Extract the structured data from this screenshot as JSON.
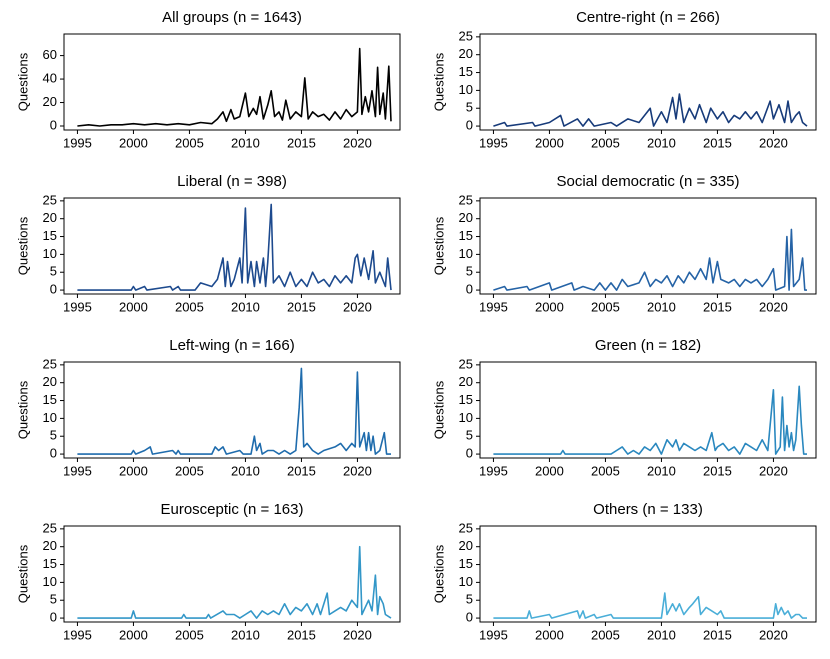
{
  "chart_data": [
    {
      "type": "line",
      "title": "All groups (n = 1643)",
      "y_label": "Questions",
      "color": "#000000",
      "xlim": [
        1993.8,
        2023.8
      ],
      "ylim": [
        -3.4,
        78.4
      ],
      "xticks": [
        1995,
        2000,
        2005,
        2010,
        2015,
        2020
      ],
      "yticks": [
        0,
        20,
        40,
        60
      ],
      "x": [
        1995,
        1996,
        1997,
        1998,
        1999,
        2000,
        2001,
        2002,
        2003,
        2004,
        2005,
        2006,
        2007,
        2007.5,
        2008,
        2008.3,
        2008.7,
        2009,
        2009.5,
        2010,
        2010.3,
        2010.7,
        2011,
        2011.3,
        2011.6,
        2012,
        2012.3,
        2012.6,
        2013,
        2013.3,
        2013.6,
        2014,
        2014.5,
        2015,
        2015.3,
        2015.6,
        2016,
        2016.5,
        2017,
        2017.5,
        2018,
        2018.5,
        2019,
        2019.5,
        2020,
        2020.2,
        2020.4,
        2020.7,
        2021,
        2021.3,
        2021.6,
        2021.8,
        2022,
        2022.3,
        2022.5,
        2022.8,
        2023
      ],
      "values": [
        0,
        1,
        0,
        1,
        1,
        2,
        1,
        2,
        1,
        2,
        1,
        3,
        2,
        6,
        12,
        4,
        14,
        6,
        8,
        28,
        8,
        15,
        10,
        25,
        6,
        18,
        30,
        8,
        12,
        5,
        22,
        6,
        12,
        8,
        41,
        6,
        12,
        8,
        10,
        5,
        12,
        6,
        14,
        8,
        12,
        66,
        10,
        25,
        12,
        30,
        8,
        50,
        10,
        28,
        6,
        51,
        4
      ]
    },
    {
      "type": "line",
      "title": "Centre-right (n = 266)",
      "y_label": "Questions",
      "color": "#173b7a",
      "xlim": [
        1993.8,
        2023.8
      ],
      "ylim": [
        -1.1,
        25.8
      ],
      "xticks": [
        1995,
        2000,
        2005,
        2010,
        2015,
        2020
      ],
      "yticks": [
        0,
        5,
        10,
        15,
        20,
        25
      ],
      "x": [
        1995,
        1996,
        1996.2,
        1998.5,
        1998.7,
        2000,
        2001,
        2001.3,
        2002.5,
        2003,
        2003.5,
        2004,
        2005.5,
        2006,
        2007,
        2008,
        2009,
        2009.3,
        2010,
        2010.5,
        2011,
        2011.3,
        2011.6,
        2012,
        2012.5,
        2013,
        2013.4,
        2014,
        2014.4,
        2015,
        2015.5,
        2016,
        2016.5,
        2017,
        2017.5,
        2018,
        2018.5,
        2019,
        2019.7,
        2020,
        2020.5,
        2021,
        2021.3,
        2021.6,
        2022,
        2022.3,
        2022.6,
        2023
      ],
      "values": [
        0,
        1,
        0,
        1,
        0,
        1,
        3,
        0,
        2,
        0,
        2,
        0,
        1,
        0,
        2,
        1,
        5,
        0,
        4,
        1,
        8,
        2,
        9,
        1,
        5,
        2,
        6,
        1,
        5,
        2,
        4,
        1,
        3,
        2,
        4,
        2,
        4,
        1,
        7,
        2,
        6,
        1,
        7,
        1,
        3,
        4,
        1,
        0
      ]
    },
    {
      "type": "line",
      "title": "Liberal (n = 398)",
      "y_label": "Questions",
      "color": "#1d4a8e",
      "xlim": [
        1993.8,
        2023.8
      ],
      "ylim": [
        -1.1,
        25.8
      ],
      "xticks": [
        1995,
        2000,
        2005,
        2010,
        2015,
        2020
      ],
      "yticks": [
        0,
        5,
        10,
        15,
        20,
        25
      ],
      "x": [
        1995,
        1999.8,
        2000,
        2000.2,
        2001,
        2001.2,
        2003.3,
        2003.5,
        2004,
        2004.2,
        2005.5,
        2006,
        2007,
        2007.5,
        2008,
        2008.2,
        2008.4,
        2008.7,
        2009,
        2009.5,
        2009.7,
        2010,
        2010.2,
        2010.5,
        2010.8,
        2011,
        2011.3,
        2011.6,
        2011.8,
        2012,
        2012.3,
        2012.5,
        2013,
        2013.5,
        2014,
        2014.5,
        2015,
        2015.5,
        2016,
        2016.5,
        2017,
        2017.5,
        2018,
        2018.5,
        2019,
        2019.5,
        2019.8,
        2020,
        2020.3,
        2020.6,
        2021,
        2021.4,
        2021.6,
        2022,
        2022.5,
        2022.7,
        2023
      ],
      "values": [
        0,
        0,
        1,
        0,
        1,
        0,
        1,
        0,
        1,
        0,
        0,
        2,
        1,
        3,
        9,
        1,
        8,
        1,
        3,
        9,
        2,
        23,
        2,
        8,
        1,
        8,
        2,
        9,
        1,
        8,
        24,
        2,
        4,
        1,
        5,
        1,
        3,
        1,
        5,
        2,
        3,
        1,
        4,
        2,
        4,
        2,
        9,
        10,
        4,
        9,
        3,
        11,
        2,
        5,
        1,
        9,
        0
      ]
    },
    {
      "type": "line",
      "title": "Social democratic (n = 335)",
      "y_label": "Questions",
      "color": "#2563a6",
      "xlim": [
        1993.8,
        2023.8
      ],
      "ylim": [
        -1.1,
        25.8
      ],
      "xticks": [
        1995,
        2000,
        2005,
        2010,
        2015,
        2020
      ],
      "yticks": [
        0,
        5,
        10,
        15,
        20,
        25
      ],
      "x": [
        1995,
        1996,
        1996.2,
        1998,
        1998.2,
        2000,
        2000.2,
        2002,
        2002.2,
        2003,
        2004,
        2004.5,
        2005,
        2005.5,
        2006,
        2006.5,
        2007,
        2008,
        2008.5,
        2009,
        2009.5,
        2010,
        2010.5,
        2011,
        2011.5,
        2012,
        2012.5,
        2013,
        2013.5,
        2014,
        2014.3,
        2014.6,
        2015,
        2015.3,
        2016,
        2016.5,
        2017,
        2017.5,
        2018,
        2018.5,
        2019,
        2019.5,
        2020,
        2020.2,
        2021,
        2021.2,
        2021.4,
        2021.6,
        2021.8,
        2022.3,
        2022.6,
        2022.8,
        2023
      ],
      "values": [
        0,
        1,
        0,
        1,
        0,
        2,
        0,
        2,
        0,
        1,
        0,
        2,
        0,
        2,
        0,
        3,
        1,
        2,
        5,
        1,
        3,
        2,
        4,
        1,
        4,
        2,
        5,
        3,
        6,
        3,
        9,
        2,
        8,
        3,
        2,
        3,
        1,
        3,
        2,
        3,
        1,
        3,
        6,
        0,
        1,
        15,
        0,
        17,
        1,
        3,
        9,
        0,
        0
      ]
    },
    {
      "type": "line",
      "title": "Left-wing (n = 166)",
      "y_label": "Questions",
      "color": "#1f6cad",
      "xlim": [
        1993.8,
        2023.8
      ],
      "ylim": [
        -1.1,
        25.8
      ],
      "xticks": [
        1995,
        2000,
        2005,
        2010,
        2015,
        2020
      ],
      "yticks": [
        0,
        5,
        10,
        15,
        20,
        25
      ],
      "x": [
        1995,
        1999.8,
        2000,
        2000.2,
        2001,
        2001.5,
        2001.7,
        2003.5,
        2003.8,
        2004,
        2004.2,
        2007,
        2007.3,
        2007.6,
        2008,
        2008.3,
        2009.5,
        2009.8,
        2010.5,
        2010.8,
        2011,
        2011.3,
        2011.5,
        2012,
        2012.5,
        2013,
        2013.5,
        2014,
        2014.5,
        2014.8,
        2015,
        2015.2,
        2015.5,
        2016,
        2016.5,
        2017,
        2018,
        2018.5,
        2019,
        2019.5,
        2019.8,
        2020,
        2020.2,
        2020.6,
        2020.8,
        2021,
        2021.2,
        2021.4,
        2021.6,
        2022,
        2022.4,
        2022.6,
        2023
      ],
      "values": [
        0,
        0,
        1,
        0,
        1,
        2,
        0,
        1,
        0,
        1,
        0,
        0,
        2,
        1,
        2,
        0,
        1,
        0,
        0,
        5,
        1,
        3,
        0,
        1,
        1,
        0,
        1,
        0,
        1,
        13,
        24,
        2,
        3,
        1,
        0,
        1,
        2,
        3,
        1,
        3,
        2,
        23,
        2,
        6,
        1,
        6,
        1,
        5,
        0,
        1,
        6,
        0,
        0
      ]
    },
    {
      "type": "line",
      "title": "Green (n = 182)",
      "y_label": "Questions",
      "color": "#2a88bf",
      "xlim": [
        1993.8,
        2023.8
      ],
      "ylim": [
        -1.1,
        25.8
      ],
      "xticks": [
        1995,
        2000,
        2005,
        2010,
        2015,
        2020
      ],
      "yticks": [
        0,
        5,
        10,
        15,
        20,
        25
      ],
      "x": [
        1995,
        2001,
        2001.2,
        2001.4,
        2005.5,
        2006,
        2006.5,
        2007,
        2007.5,
        2008,
        2008.5,
        2009,
        2009.5,
        2010,
        2010.5,
        2011,
        2011.3,
        2011.6,
        2012,
        2012.5,
        2013,
        2013.5,
        2014,
        2014.5,
        2014.8,
        2015,
        2015.5,
        2016,
        2016.5,
        2017,
        2017.5,
        2018,
        2018.5,
        2019,
        2019.5,
        2020,
        2020.2,
        2020.6,
        2020.8,
        2021,
        2021.2,
        2021.4,
        2021.6,
        2021.8,
        2022,
        2022.3,
        2022.5,
        2022.7,
        2023
      ],
      "values": [
        0,
        0,
        1,
        0,
        0,
        1,
        2,
        0,
        1,
        0,
        2,
        1,
        3,
        0,
        4,
        2,
        4,
        1,
        3,
        2,
        1,
        2,
        1,
        6,
        1,
        2,
        3,
        1,
        2,
        0,
        3,
        2,
        1,
        4,
        1,
        18,
        0,
        2,
        16,
        1,
        8,
        2,
        6,
        1,
        4,
        19,
        8,
        0,
        0
      ]
    },
    {
      "type": "line",
      "title": "Eurosceptic (n = 163)",
      "y_label": "Questions",
      "color": "#3397c8",
      "xlim": [
        1993.8,
        2023.8
      ],
      "ylim": [
        -1.1,
        25.8
      ],
      "xticks": [
        1995,
        2000,
        2005,
        2010,
        2015,
        2020
      ],
      "yticks": [
        0,
        5,
        10,
        15,
        20,
        25
      ],
      "x": [
        1995,
        1999.8,
        2000,
        2000.2,
        2004.3,
        2004.5,
        2004.7,
        2006.5,
        2006.7,
        2006.9,
        2008,
        2008.3,
        2009,
        2009.5,
        2010,
        2010.5,
        2011,
        2011.5,
        2012,
        2012.5,
        2013,
        2013.5,
        2014,
        2014.5,
        2015,
        2015.5,
        2016,
        2016.4,
        2016.7,
        2017.3,
        2017.5,
        2018,
        2018.5,
        2019,
        2019.5,
        2020,
        2020.2,
        2020.4,
        2021,
        2021.3,
        2021.6,
        2021.8,
        2022,
        2022.3,
        2022.5,
        2023
      ],
      "values": [
        0,
        0,
        2,
        0,
        0,
        1,
        0,
        0,
        1,
        0,
        2,
        1,
        1,
        0,
        1,
        2,
        0,
        2,
        1,
        2,
        1,
        4,
        1,
        3,
        2,
        4,
        1,
        4,
        1,
        7,
        1,
        2,
        3,
        2,
        5,
        3,
        20,
        1,
        5,
        2,
        12,
        1,
        6,
        4,
        1,
        0
      ]
    },
    {
      "type": "line",
      "title": "Others (n = 133)",
      "y_label": "Questions",
      "color": "#4aaed8",
      "xlim": [
        1993.8,
        2023.8
      ],
      "ylim": [
        -1.1,
        25.8
      ],
      "xticks": [
        1995,
        2000,
        2005,
        2010,
        2015,
        2020
      ],
      "yticks": [
        0,
        5,
        10,
        15,
        20,
        25
      ],
      "x": [
        1995,
        1998,
        1998.2,
        1998.4,
        2000,
        2000.2,
        2002.5,
        2002.7,
        2003,
        2003.2,
        2004,
        2004.2,
        2005.5,
        2005.7,
        2010,
        2010.3,
        2010.5,
        2011,
        2011.3,
        2011.6,
        2012,
        2012.5,
        2012.8,
        2013.3,
        2013.5,
        2014,
        2014.5,
        2015,
        2015.3,
        2015.6,
        2020,
        2020.2,
        2020.4,
        2020.7,
        2021,
        2021.3,
        2021.6,
        2022,
        2022.3,
        2022.6,
        2023
      ],
      "values": [
        0,
        0,
        2,
        0,
        1,
        0,
        2,
        0,
        2,
        0,
        1,
        0,
        1,
        0,
        0,
        7,
        1,
        4,
        2,
        4,
        1,
        3,
        4,
        6,
        1,
        3,
        2,
        1,
        2,
        0,
        0,
        4,
        1,
        3,
        1,
        2,
        0,
        1,
        1,
        0,
        0
      ]
    }
  ]
}
